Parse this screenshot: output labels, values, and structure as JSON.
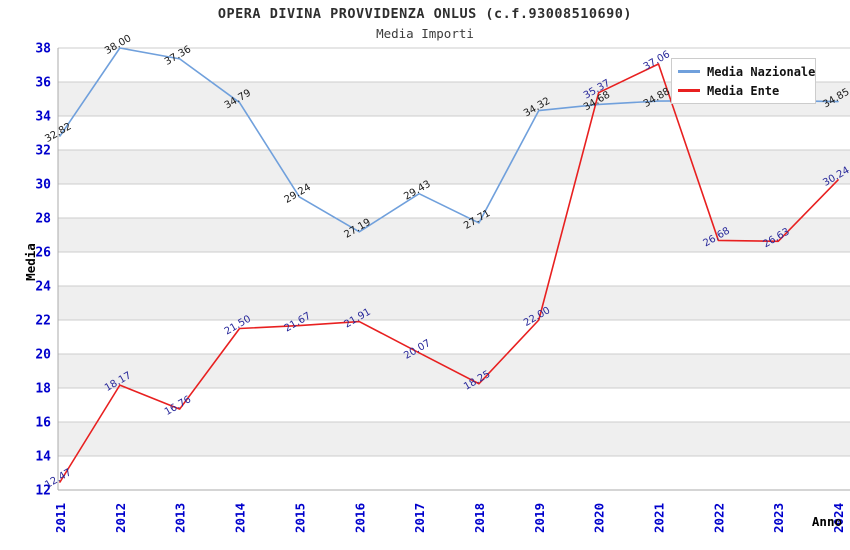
{
  "header": {
    "title": "OPERA DIVINA PROVVIDENZA ONLUS (c.f.93008510690)",
    "subtitle": "Media Importi"
  },
  "axes": {
    "y_title": "Media",
    "x_title": "Anno",
    "tick_color": "#0000cc"
  },
  "legend": {
    "items": [
      {
        "label": "Media Nazionale",
        "color": "#70a0dc"
      },
      {
        "label": "Media Ente",
        "color": "#e82020"
      }
    ]
  },
  "chart_data": {
    "type": "line",
    "title": "OPERA DIVINA PROVVIDENZA ONLUS (c.f.93008510690)",
    "subtitle": "Media Importi",
    "xlabel": "Anno",
    "ylabel": "Media",
    "x": [
      "2011",
      "2012",
      "2013",
      "2014",
      "2015",
      "2016",
      "2017",
      "2018",
      "2019",
      "2020",
      "2021",
      "2022",
      "2023",
      "2024"
    ],
    "ylim": [
      12,
      38
    ],
    "y_tick_step": 2,
    "grid": "horizontal",
    "legend_position": "top-right",
    "band_color": "#efefef",
    "grid_color": "#cccccc",
    "axis_color": "#ababab",
    "series": [
      {
        "name": "Media Nazionale",
        "color": "#70a0dc",
        "label_color": "#1a1a1a",
        "values": [
          32.82,
          38.0,
          37.36,
          34.79,
          29.24,
          27.19,
          29.43,
          27.71,
          34.32,
          34.68,
          34.88,
          34.9,
          34.9,
          34.85
        ],
        "labels": [
          "32.82",
          "38.00",
          "37.36",
          "34.79",
          "29.24",
          "27.19",
          "29.43",
          "27.71",
          "34.32",
          "34.68",
          "34.88",
          "",
          "",
          "34.85"
        ]
      },
      {
        "name": "Media Ente",
        "color": "#e82020",
        "label_color": "#28289a",
        "values": [
          12.47,
          18.17,
          16.76,
          21.5,
          21.67,
          21.91,
          20.07,
          18.25,
          22.0,
          35.37,
          37.06,
          26.68,
          26.63,
          30.24
        ],
        "labels": [
          "12.47",
          "18.17",
          "16.76",
          "21.50",
          "21.67",
          "21.91",
          "20.07",
          "18.25",
          "22.00",
          "35.37",
          "37.06",
          "26.68",
          "26.63",
          "30.24"
        ]
      }
    ]
  }
}
